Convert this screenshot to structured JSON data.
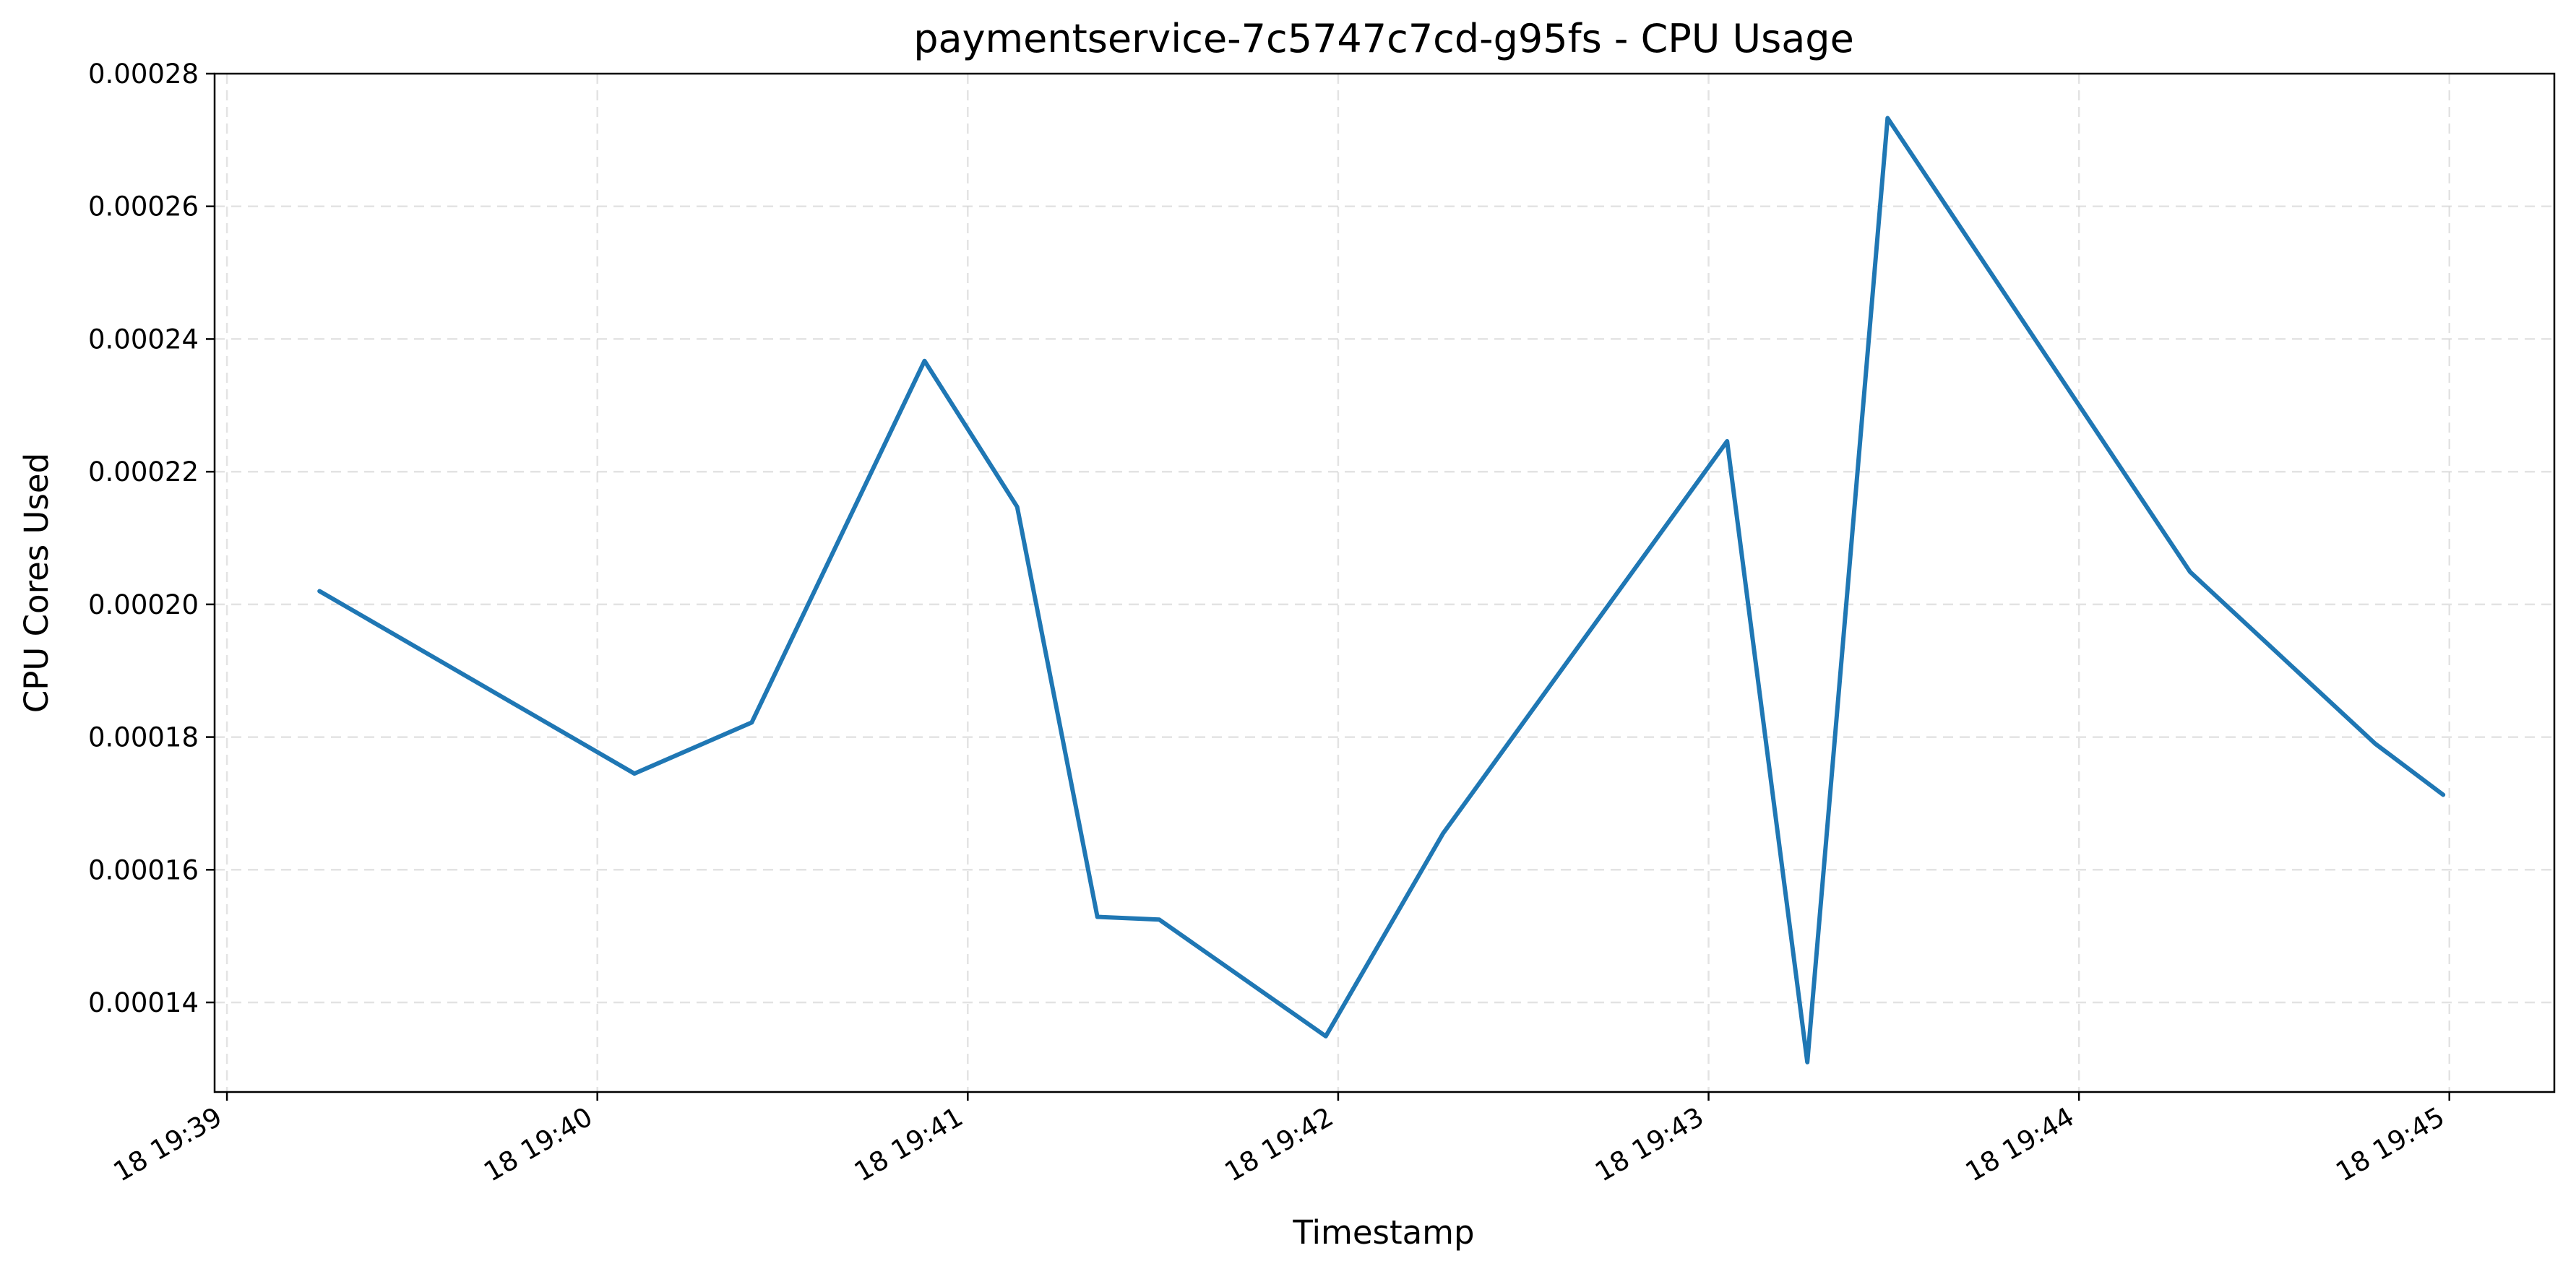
{
  "chart_data": {
    "type": "line",
    "title": "paymentservice-7c5747c7cd-g95fs - CPU Usage",
    "xlabel": "Timestamp",
    "ylabel": "CPU Cores Used",
    "grid": true,
    "x_tick_labels": [
      "18 19:39",
      "18 19:40",
      "18 19:41",
      "18 19:42",
      "18 19:43",
      "18 19:44",
      "18 19:45"
    ],
    "y_tick_labels": [
      "0.00014",
      "0.00016",
      "0.00018",
      "0.00020",
      "0.00022",
      "0.00024",
      "0.00026",
      "0.00028"
    ],
    "y_ticks": [
      0.00014,
      0.00016,
      0.00018,
      0.0002,
      0.00022,
      0.00024,
      0.00026,
      0.00028
    ],
    "xlim": [
      "19:38:58",
      "19:45:17"
    ],
    "ylim": [
      0.0001265,
      0.00028
    ],
    "series": [
      {
        "color": "#1f77b4",
        "x": [
          "19:39:15",
          "19:40:06",
          "19:40:25",
          "19:40:53",
          "19:41:08",
          "19:41:21",
          "19:41:31",
          "19:41:58",
          "19:42:17",
          "19:43:03",
          "19:43:16",
          "19:43:29",
          "19:44:18",
          "19:44:48",
          "19:44:59"
        ],
        "values": [
          0.000202,
          0.0001745,
          0.0001822,
          0.0002367,
          0.0002147,
          0.0001529,
          0.0001525,
          0.0001349,
          0.0001655,
          0.0002246,
          0.000131,
          0.0002733,
          0.0002049,
          0.000179,
          0.0001713
        ]
      }
    ]
  }
}
